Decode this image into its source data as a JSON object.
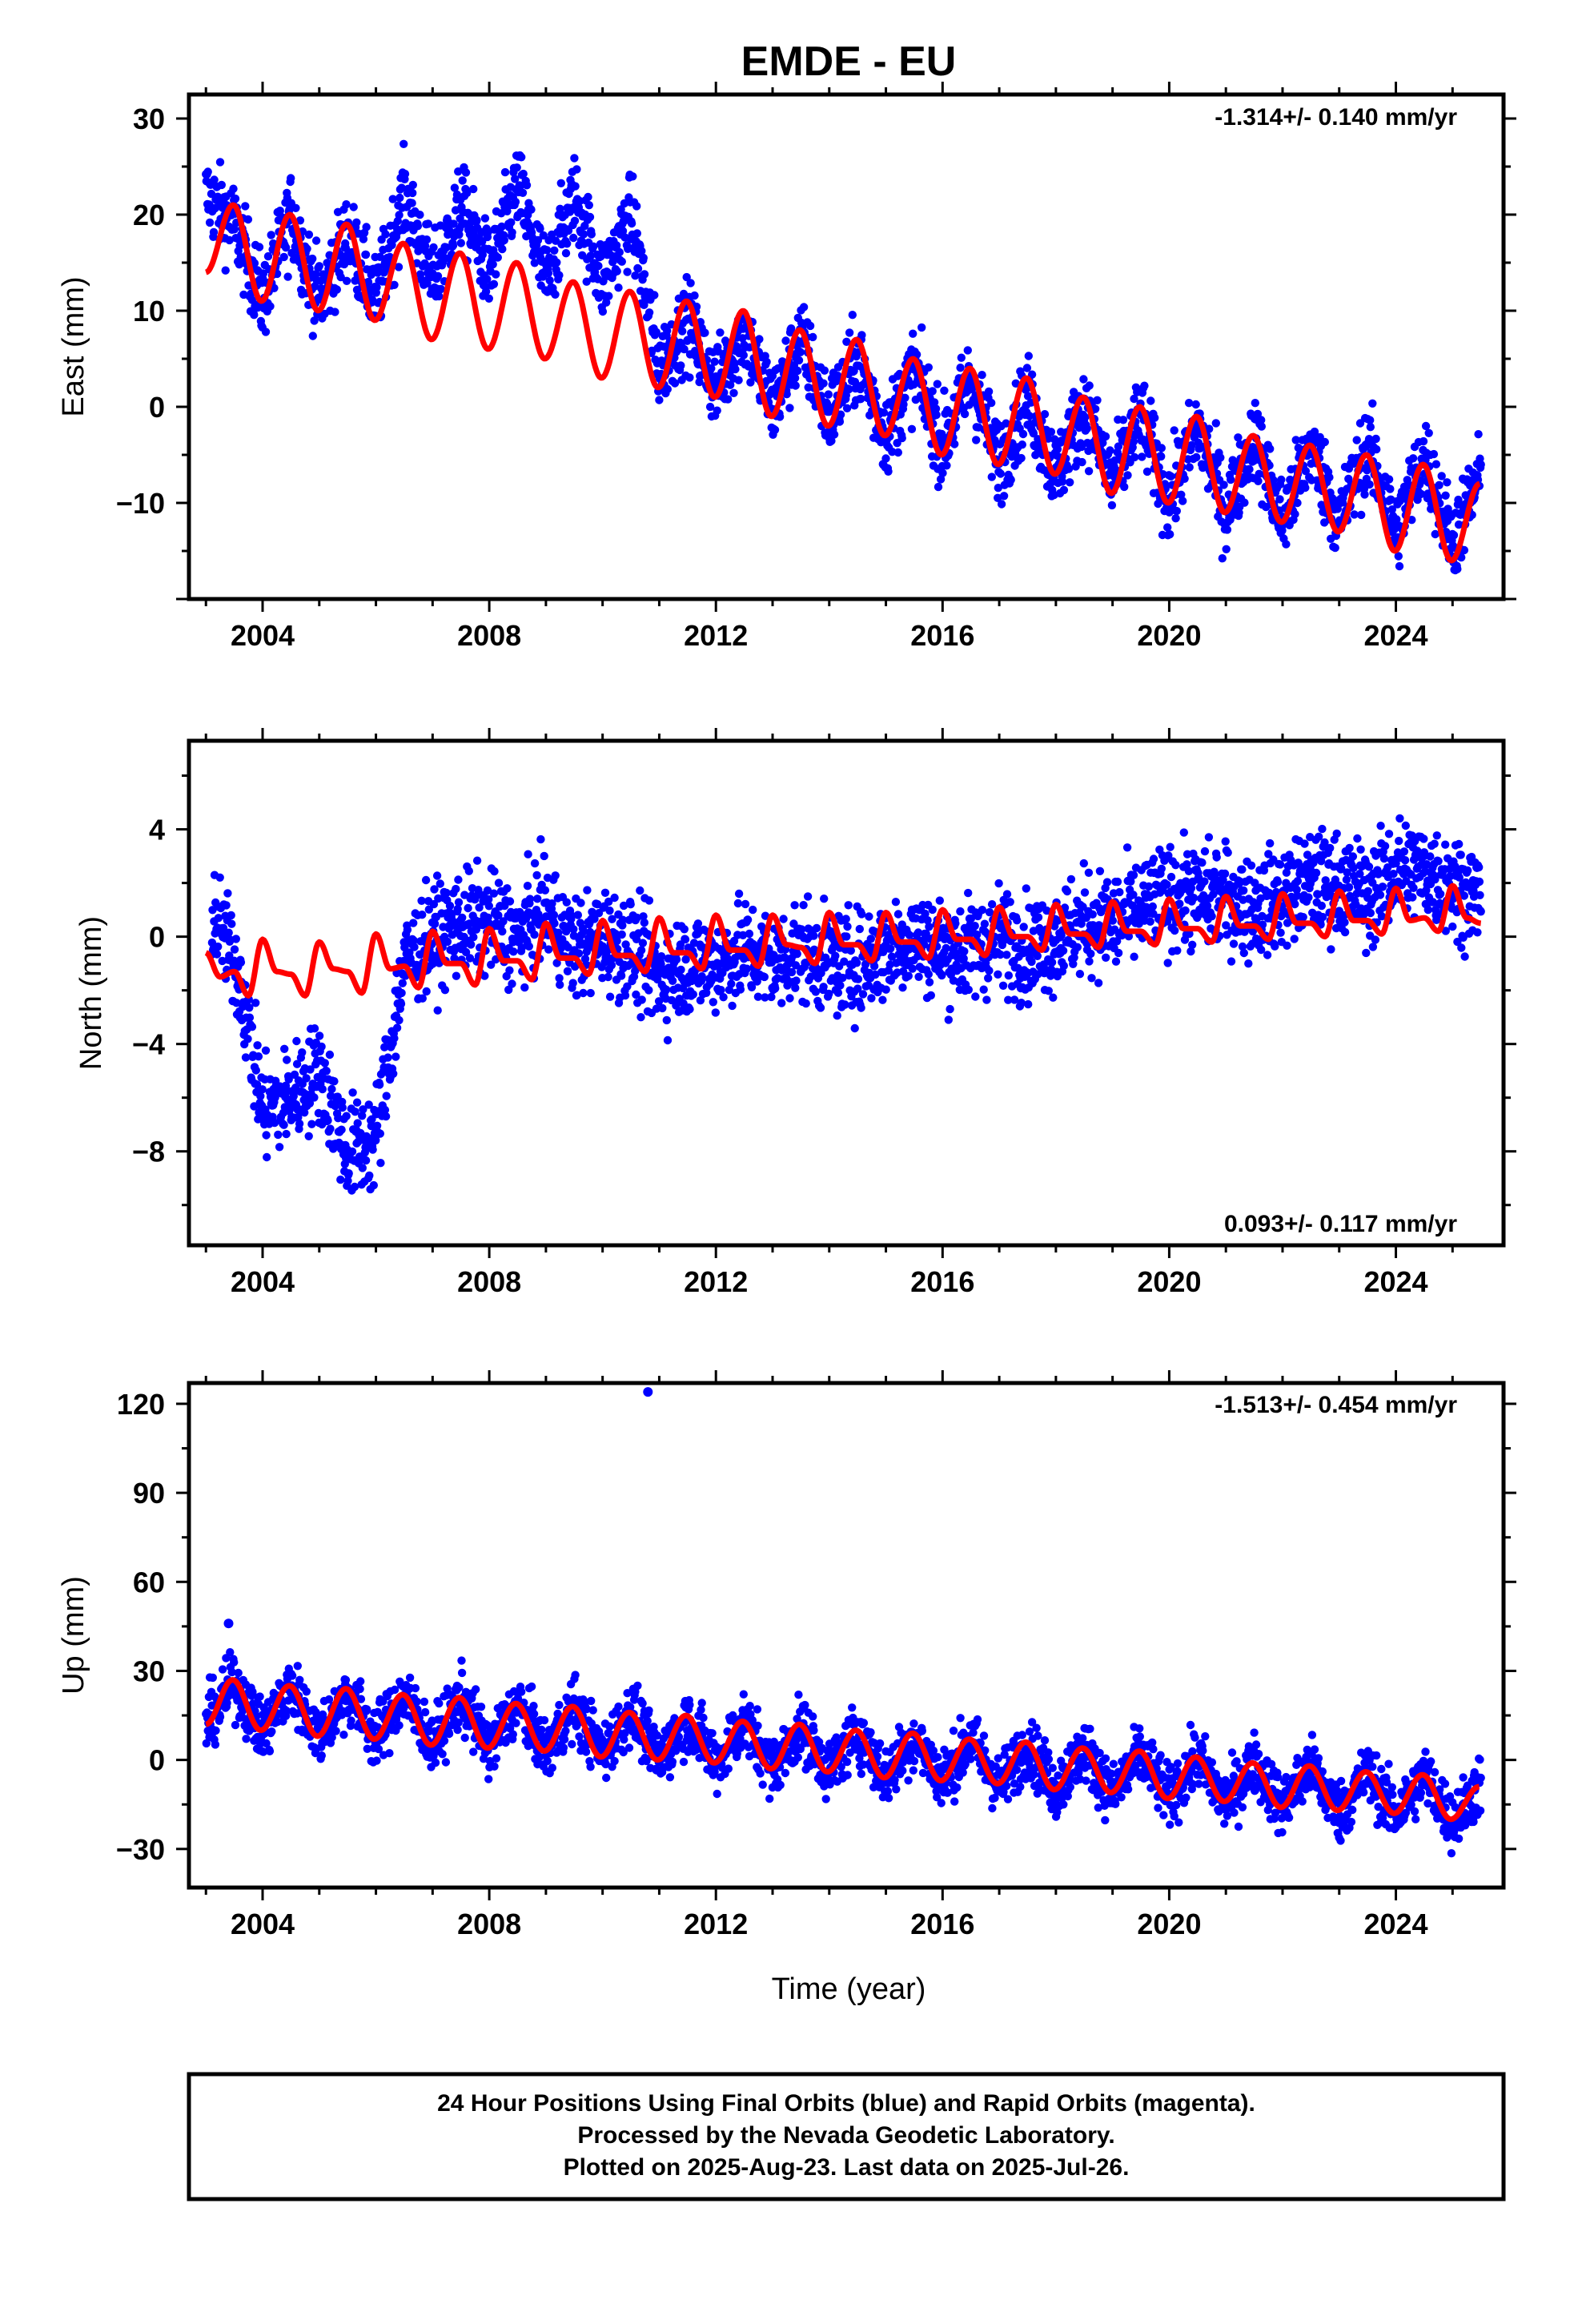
{
  "title": "EMDE - EU",
  "xlabel": "Time (year)",
  "footer_lines": [
    "24 Hour Positions Using Final Orbits (blue) and Rapid Orbits (magenta).",
    "Processed by the Nevada Geodetic Laboratory.",
    "Plotted on 2025-Aug-23. Last data on 2025-Jul-26."
  ],
  "colors": {
    "final_orbits": "#0000ff",
    "model_fit": "#ff0000",
    "frame": "#000000"
  },
  "chart_data": [
    {
      "type": "scatter",
      "ylabel": "East (mm)",
      "rate": "-1.314+/- 0.140 mm/yr",
      "xlim": [
        2002.7,
        2025.9
      ],
      "ylim": [
        -20,
        32.5
      ],
      "xticks": [
        2004,
        2008,
        2012,
        2016,
        2020,
        2024
      ],
      "yticks": [
        -10,
        0,
        10,
        20,
        30
      ],
      "series": [
        {
          "kind": "scatter",
          "x": [
            2003.0,
            2003.5,
            2004.0,
            2004.5,
            2005.0,
            2005.5,
            2006.0,
            2006.5,
            2007.0,
            2007.5,
            2008.0,
            2008.5,
            2009.0,
            2009.5,
            2010.0,
            2010.5,
            2011.0,
            2011.5,
            2012.0,
            2012.5,
            2013.0,
            2013.5,
            2014.0,
            2014.5,
            2015.0,
            2015.5,
            2016.0,
            2016.5,
            2017.0,
            2017.5,
            2018.0,
            2018.5,
            2019.0,
            2019.5,
            2020.0,
            2020.5,
            2021.0,
            2021.5,
            2022.0,
            2022.5,
            2023.0,
            2023.5,
            2024.0,
            2024.5,
            2025.0,
            2025.5
          ],
          "y": [
            22,
            19,
            11,
            20,
            11,
            18,
            11,
            22,
            13,
            21,
            14,
            23,
            13,
            22,
            13,
            20,
            4,
            9,
            2,
            8,
            0,
            7,
            -1,
            5,
            -3,
            4,
            -4,
            3,
            -6,
            1,
            -7,
            0,
            -8,
            -1,
            -10,
            -2,
            -11,
            -3,
            -12,
            -4,
            -12,
            -4,
            -13,
            -5,
            -14,
            -7
          ],
          "spread": 3.0
        },
        {
          "kind": "line",
          "x": [
            2003.0,
            2003.48,
            2003.98,
            2004.48,
            2004.98,
            2005.48,
            2005.98,
            2006.48,
            2006.98,
            2007.48,
            2007.98,
            2008.48,
            2008.98,
            2009.48,
            2009.98,
            2010.48,
            2010.98,
            2011.48,
            2011.98,
            2012.48,
            2012.98,
            2013.48,
            2013.98,
            2014.48,
            2014.98,
            2015.48,
            2015.98,
            2016.48,
            2016.98,
            2017.48,
            2017.98,
            2018.48,
            2018.98,
            2019.48,
            2019.98,
            2020.48,
            2020.98,
            2021.48,
            2021.98,
            2022.48,
            2022.98,
            2023.48,
            2023.98,
            2024.48,
            2024.98,
            2025.48
          ],
          "y": [
            14,
            21,
            11,
            20,
            10,
            19,
            9,
            17,
            7,
            16,
            6,
            15,
            5,
            13,
            3,
            12,
            2,
            11,
            1,
            10,
            -1,
            8,
            -2,
            7,
            -3,
            5,
            -5,
            4,
            -6,
            3,
            -7,
            1,
            -9,
            0,
            -10,
            -1,
            -11,
            -3,
            -12,
            -4,
            -13,
            -5,
            -15,
            -6,
            -16,
            -8
          ]
        }
      ]
    },
    {
      "type": "scatter",
      "ylabel": "North (mm)",
      "rate": "0.093+/- 0.117 mm/yr",
      "xlim": [
        2002.7,
        2025.9
      ],
      "ylim": [
        -11.5,
        7.3
      ],
      "xticks": [
        2004,
        2008,
        2012,
        2016,
        2020,
        2024
      ],
      "yticks": [
        -8,
        -4,
        0,
        4
      ],
      "series": [
        {
          "kind": "scatter",
          "x": [
            2003.1,
            2003.3,
            2003.6,
            2004.0,
            2004.5,
            2005.0,
            2005.5,
            2006.0,
            2006.5,
            2007.0,
            2007.5,
            2008.0,
            2008.5,
            2009.0,
            2009.5,
            2010.0,
            2010.5,
            2011.0,
            2011.5,
            2012.0,
            2012.5,
            2013.0,
            2013.5,
            2014.0,
            2014.5,
            2015.0,
            2015.5,
            2016.0,
            2016.5,
            2017.0,
            2017.5,
            2018.0,
            2018.5,
            2019.0,
            2019.5,
            2020.0,
            2020.5,
            2021.0,
            2021.5,
            2022.0,
            2022.5,
            2023.0,
            2023.5,
            2024.0,
            2024.5,
            2025.0,
            2025.5
          ],
          "y": [
            1.0,
            0.0,
            -1.5,
            -6.5,
            -6.0,
            -5.0,
            -8.0,
            -7.5,
            -1.0,
            0.0,
            0.5,
            0.5,
            0.0,
            1.0,
            -0.5,
            0.0,
            -0.5,
            -1.5,
            -1.0,
            -1.0,
            -0.5,
            -1.0,
            -0.5,
            -1.0,
            -1.0,
            -0.5,
            0.0,
            -0.5,
            -0.5,
            0.0,
            -0.5,
            0.0,
            0.5,
            0.5,
            1.0,
            1.5,
            1.5,
            1.5,
            1.0,
            1.5,
            2.0,
            2.0,
            1.5,
            2.5,
            2.5,
            2.0,
            1.5
          ],
          "spread": 1.3
        },
        {
          "kind": "line",
          "x": [
            2003.0,
            2003.25,
            2003.5,
            2003.75,
            2004.0,
            2004.25,
            2004.5,
            2004.75,
            2005.0,
            2005.25,
            2005.5,
            2005.75,
            2006.0,
            2006.25,
            2006.5,
            2006.75,
            2007.0,
            2007.25,
            2007.5,
            2007.75,
            2008.0,
            2008.25,
            2008.5,
            2008.75,
            2009.0,
            2009.25,
            2009.5,
            2009.75,
            2010.0,
            2010.25,
            2010.5,
            2010.75,
            2011.0,
            2011.25,
            2011.5,
            2011.75,
            2012.0,
            2012.25,
            2012.5,
            2012.75,
            2013.0,
            2013.25,
            2013.5,
            2013.75,
            2014.0,
            2014.25,
            2014.5,
            2014.75,
            2015.0,
            2015.25,
            2015.5,
            2015.75,
            2016.0,
            2016.25,
            2016.5,
            2016.75,
            2017.0,
            2017.25,
            2017.5,
            2017.75,
            2018.0,
            2018.25,
            2018.5,
            2018.75,
            2019.0,
            2019.25,
            2019.5,
            2019.75,
            2020.0,
            2020.25,
            2020.5,
            2020.75,
            2021.0,
            2021.25,
            2021.5,
            2021.75,
            2022.0,
            2022.25,
            2022.5,
            2022.75,
            2023.0,
            2023.25,
            2023.5,
            2023.75,
            2024.0,
            2024.25,
            2024.5,
            2024.75,
            2025.0,
            2025.25,
            2025.5
          ],
          "y": [
            -0.6,
            -1.5,
            -1.3,
            -2.2,
            -0.1,
            -1.3,
            -1.4,
            -2.2,
            -0.2,
            -1.2,
            -1.3,
            -2.1,
            0.1,
            -1.2,
            -1.1,
            -1.9,
            0.2,
            -1.0,
            -1.0,
            -1.8,
            0.3,
            -0.9,
            -0.9,
            -1.6,
            0.5,
            -0.8,
            -0.8,
            -1.4,
            0.6,
            -0.7,
            -0.7,
            -1.3,
            0.7,
            -0.6,
            -0.6,
            -1.2,
            0.8,
            -0.5,
            -0.5,
            -1.1,
            0.8,
            -0.3,
            -0.4,
            -1.0,
            0.9,
            -0.3,
            -0.3,
            -0.9,
            0.9,
            -0.2,
            -0.2,
            -0.8,
            1.0,
            -0.1,
            -0.1,
            -0.7,
            1.1,
            0.0,
            0.0,
            -0.5,
            1.2,
            0.1,
            0.1,
            -0.4,
            1.3,
            0.2,
            0.2,
            -0.3,
            1.4,
            0.3,
            0.3,
            -0.2,
            1.5,
            0.4,
            0.4,
            -0.1,
            1.6,
            0.5,
            0.5,
            0.0,
            1.7,
            0.6,
            0.6,
            0.1,
            1.8,
            0.6,
            0.7,
            0.2,
            1.9,
            0.7,
            0.5
          ]
        }
      ]
    },
    {
      "type": "scatter",
      "ylabel": "Up (mm)",
      "rate": "-1.513+/- 0.454 mm/yr",
      "xlim": [
        2002.7,
        2025.9
      ],
      "ylim": [
        -43,
        127
      ],
      "xticks": [
        2004,
        2008,
        2012,
        2016,
        2020,
        2024
      ],
      "yticks": [
        -30,
        0,
        30,
        60,
        90,
        120
      ],
      "series": [
        {
          "kind": "scatter",
          "x": [
            2003.0,
            2003.5,
            2004.0,
            2004.5,
            2005.0,
            2005.5,
            2006.0,
            2006.5,
            2007.0,
            2007.5,
            2008.0,
            2008.5,
            2009.0,
            2009.5,
            2010.0,
            2010.5,
            2011.0,
            2011.5,
            2012.0,
            2012.5,
            2013.0,
            2013.5,
            2014.0,
            2014.5,
            2015.0,
            2015.5,
            2016.0,
            2016.5,
            2017.0,
            2017.5,
            2018.0,
            2018.5,
            2019.0,
            2019.5,
            2020.0,
            2020.5,
            2021.0,
            2021.5,
            2022.0,
            2022.5,
            2023.0,
            2023.5,
            2024.0,
            2024.5,
            2025.0,
            2025.5
          ],
          "y": [
            12,
            26,
            9,
            25,
            8,
            23,
            7,
            22,
            5,
            21,
            4,
            19,
            3,
            18,
            2,
            17,
            0,
            14,
            -1,
            13,
            -3,
            11,
            -4,
            10,
            -6,
            8,
            -7,
            7,
            -9,
            5,
            -10,
            4,
            -12,
            2,
            -13,
            1,
            -15,
            -1,
            -16,
            -2,
            -18,
            -4,
            -19,
            -5,
            -21,
            -8
          ],
          "spread": 7.0,
          "outliers": [
            {
              "x": 2003.4,
              "y": 46
            },
            {
              "x": 2010.8,
              "y": 124
            }
          ]
        },
        {
          "kind": "line",
          "x": [
            2003.0,
            2003.47,
            2003.97,
            2004.47,
            2004.97,
            2005.47,
            2005.97,
            2006.47,
            2006.97,
            2007.47,
            2007.97,
            2008.47,
            2008.97,
            2009.47,
            2009.97,
            2010.47,
            2010.97,
            2011.47,
            2011.97,
            2012.47,
            2012.97,
            2013.47,
            2013.97,
            2014.47,
            2014.97,
            2015.47,
            2015.97,
            2016.47,
            2016.97,
            2017.47,
            2017.97,
            2018.47,
            2018.97,
            2019.47,
            2019.97,
            2020.47,
            2020.97,
            2021.47,
            2021.97,
            2022.47,
            2022.97,
            2023.47,
            2023.97,
            2024.47,
            2024.97,
            2025.47
          ],
          "y": [
            12,
            27,
            10,
            25,
            8,
            24,
            7,
            22,
            5,
            21,
            4,
            19,
            3,
            18,
            1,
            16,
            0,
            15,
            -1,
            13,
            -3,
            12,
            -4,
            10,
            -6,
            9,
            -7,
            7,
            -8,
            6,
            -10,
            4,
            -11,
            3,
            -13,
            1,
            -14,
            -1,
            -16,
            -2,
            -17,
            -4,
            -18,
            -5,
            -20,
            -9
          ]
        }
      ]
    }
  ]
}
